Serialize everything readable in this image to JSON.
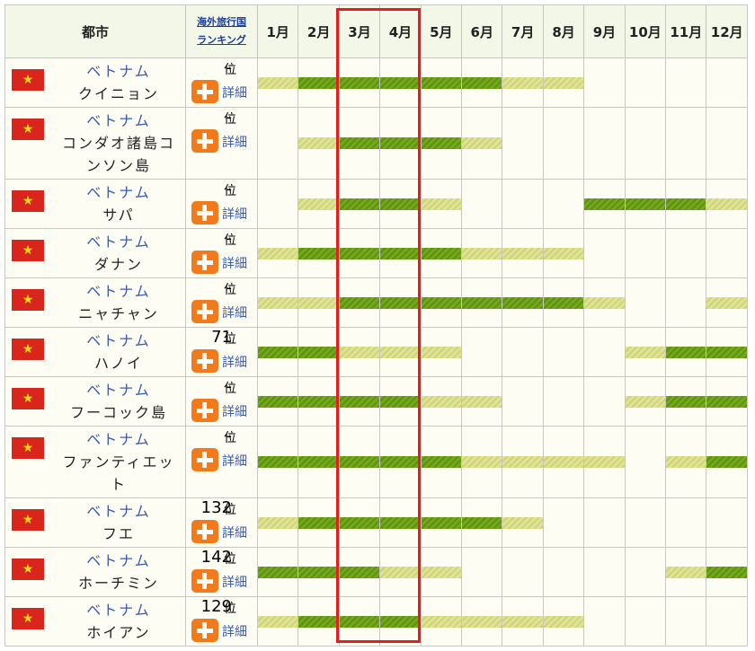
{
  "table": {
    "header": {
      "city": "都市",
      "ranking": [
        "海外旅行国",
        "ランキング"
      ],
      "months": [
        "1月",
        "2月",
        "3月",
        "4月",
        "5月",
        "6月",
        "7月",
        "8月",
        "9月",
        "10月",
        "11月",
        "12月"
      ]
    },
    "rank_suffix": "位",
    "detail_label": "詳細",
    "rows": [
      {
        "country": "ベトナム",
        "city": "クイニョン",
        "rank": "-",
        "seasons": [
          "good",
          "best",
          "best",
          "best",
          "best",
          "best",
          "good",
          "good",
          null,
          null,
          null,
          null
        ]
      },
      {
        "country": "ベトナム",
        "city": "コンダオ諸島コンソン島",
        "rank": "-",
        "seasons": [
          null,
          "good",
          "best",
          "best",
          "best",
          "good",
          null,
          null,
          null,
          null,
          null,
          null
        ]
      },
      {
        "country": "ベトナム",
        "city": "サパ",
        "rank": "-",
        "seasons": [
          null,
          "good",
          "best",
          "best",
          "good",
          null,
          null,
          null,
          "best",
          "best",
          "best",
          "good"
        ]
      },
      {
        "country": "ベトナム",
        "city": "ダナン",
        "rank": "-",
        "seasons": [
          "good",
          "best",
          "best",
          "best",
          "best",
          "good",
          "good",
          "good",
          null,
          null,
          null,
          null
        ]
      },
      {
        "country": "ベトナム",
        "city": "ニャチャン",
        "rank": "-",
        "seasons": [
          "good",
          "good",
          "best",
          "best",
          "best",
          "best",
          "best",
          "best",
          "good",
          null,
          null,
          "good"
        ]
      },
      {
        "country": "ベトナム",
        "city": "ハノイ",
        "rank": 71,
        "seasons": [
          "best",
          "best",
          "good",
          "good",
          "good",
          null,
          null,
          null,
          null,
          "good",
          "best",
          "best"
        ]
      },
      {
        "country": "ベトナム",
        "city": "フーコック島",
        "rank": "-",
        "seasons": [
          "best",
          "best",
          "best",
          "best",
          "good",
          "good",
          null,
          null,
          null,
          "good",
          "best",
          "best"
        ]
      },
      {
        "country": "ベトナム",
        "city": "ファンティエット",
        "rank": "-",
        "seasons": [
          "best",
          "best",
          "best",
          "best",
          "best",
          "good",
          "good",
          "good",
          "good",
          null,
          "good",
          "best"
        ]
      },
      {
        "country": "ベトナム",
        "city": "フエ",
        "rank": 132,
        "seasons": [
          "good",
          "best",
          "best",
          "best",
          "best",
          "best",
          "good",
          null,
          null,
          null,
          null,
          null
        ]
      },
      {
        "country": "ベトナム",
        "city": "ホーチミン",
        "rank": 142,
        "seasons": [
          "best",
          "best",
          "best",
          "good",
          "good",
          null,
          null,
          null,
          null,
          null,
          "good",
          "best"
        ]
      },
      {
        "country": "ベトナム",
        "city": "ホイアン",
        "rank": 129,
        "seasons": [
          "good",
          "best",
          "best",
          "best",
          "good",
          "good",
          "good",
          "good",
          null,
          null,
          null,
          null
        ]
      }
    ]
  }
}
